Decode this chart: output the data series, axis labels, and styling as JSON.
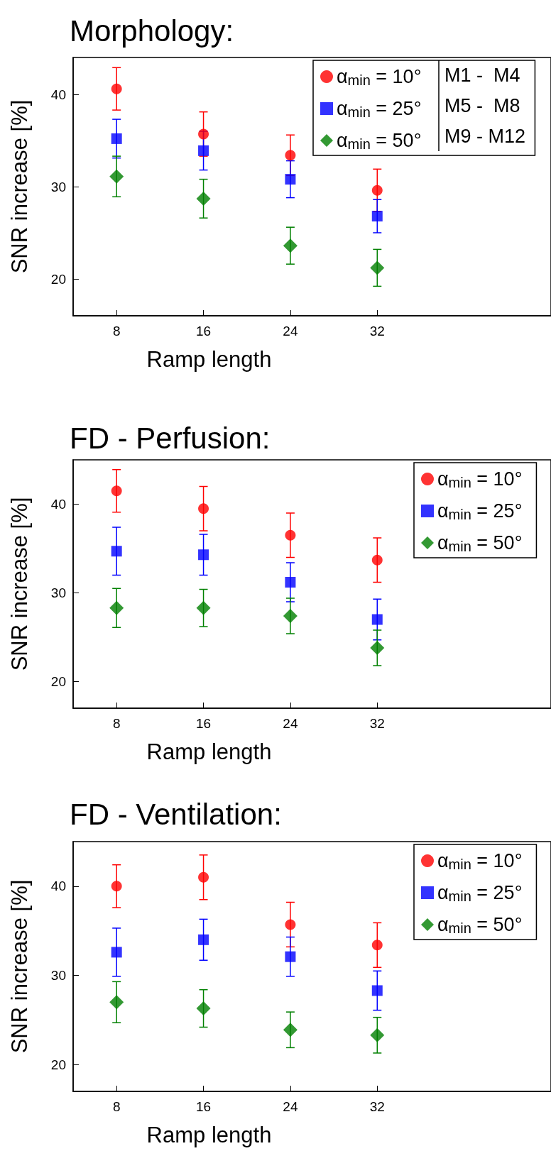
{
  "chart_data": [
    {
      "type": "scatter",
      "title": "Morphology:",
      "xlabel": "Ramp length",
      "ylabel": "SNR increase [%]",
      "x": [
        8,
        16,
        24,
        32
      ],
      "xlim": [
        4,
        48
      ],
      "xticks": [
        8,
        16,
        24,
        32
      ],
      "ylim": [
        16,
        44
      ],
      "yticks": [
        20,
        30,
        40
      ],
      "legend": "top right",
      "annotations": [
        "M1 -  M4",
        "M5 -  M8",
        "M9 - M12"
      ],
      "series": [
        {
          "name": "α$_{min}$ = 10°",
          "color": "#ff0000",
          "marker": "circle",
          "values": [
            40.6,
            35.7,
            33.4,
            29.6
          ],
          "errors": [
            2.3,
            2.4,
            2.2,
            2.3
          ]
        },
        {
          "name": "α$_{min}$ = 25°",
          "color": "#0000ff",
          "marker": "square",
          "values": [
            35.2,
            33.9,
            30.8,
            26.8
          ],
          "errors": [
            2.1,
            2.1,
            2.0,
            1.8
          ]
        },
        {
          "name": "α$_{min}$ = 50°",
          "color": "#008000",
          "marker": "diamond",
          "values": [
            31.1,
            28.7,
            23.6,
            21.2
          ],
          "errors": [
            2.2,
            2.1,
            2.0,
            2.0
          ]
        }
      ]
    },
    {
      "type": "scatter",
      "title": "FD - Perfusion:",
      "xlabel": "Ramp length",
      "ylabel": "SNR increase [%]",
      "x": [
        8,
        16,
        24,
        32
      ],
      "xlim": [
        4,
        48
      ],
      "xticks": [
        8,
        16,
        24,
        32
      ],
      "ylim": [
        17,
        45
      ],
      "yticks": [
        20,
        30,
        40
      ],
      "legend": "top right",
      "series": [
        {
          "name": "α$_{min}$ = 10°",
          "color": "#ff0000",
          "marker": "circle",
          "values": [
            41.5,
            39.5,
            36.5,
            33.7
          ],
          "errors": [
            2.4,
            2.5,
            2.5,
            2.5
          ]
        },
        {
          "name": "α$_{min}$ = 25°",
          "color": "#0000ff",
          "marker": "square",
          "values": [
            34.7,
            34.3,
            31.2,
            27.0
          ],
          "errors": [
            2.7,
            2.3,
            2.2,
            2.3
          ]
        },
        {
          "name": "α$_{min}$ = 50°",
          "color": "#008000",
          "marker": "diamond",
          "values": [
            28.3,
            28.3,
            27.4,
            23.8
          ],
          "errors": [
            2.2,
            2.1,
            2.0,
            2.0
          ]
        }
      ]
    },
    {
      "type": "scatter",
      "title": "FD - Ventilation:",
      "xlabel": "Ramp length",
      "ylabel": "SNR increase [%]",
      "x": [
        8,
        16,
        24,
        32
      ],
      "xlim": [
        4,
        48
      ],
      "xticks": [
        8,
        16,
        24,
        32
      ],
      "ylim": [
        17,
        45
      ],
      "yticks": [
        20,
        30,
        40
      ],
      "legend": "top right",
      "series": [
        {
          "name": "α$_{min}$ = 10°",
          "color": "#ff0000",
          "marker": "circle",
          "values": [
            40.0,
            41.0,
            35.7,
            33.4
          ],
          "errors": [
            2.4,
            2.5,
            2.5,
            2.5
          ]
        },
        {
          "name": "α$_{min}$ = 25°",
          "color": "#0000ff",
          "marker": "square",
          "values": [
            32.6,
            34.0,
            32.1,
            28.3
          ],
          "errors": [
            2.7,
            2.3,
            2.2,
            2.2
          ]
        },
        {
          "name": "α$_{min}$ = 50°",
          "color": "#008000",
          "marker": "diamond",
          "values": [
            27.0,
            26.3,
            23.9,
            23.3
          ],
          "errors": [
            2.3,
            2.1,
            2.0,
            2.0
          ]
        }
      ]
    }
  ]
}
